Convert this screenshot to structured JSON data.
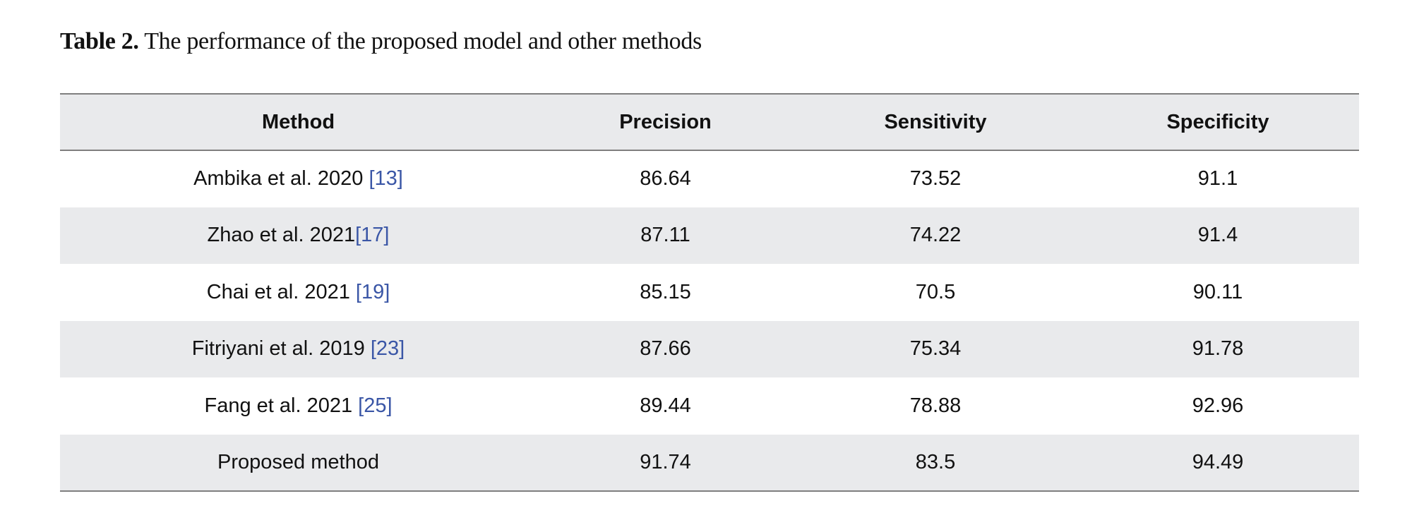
{
  "caption": {
    "label": "Table 2.",
    "text": " The performance of the proposed model and other methods"
  },
  "table": {
    "headers": [
      "Method",
      "Precision",
      "Sensitivity",
      "Specificity"
    ],
    "rows": [
      {
        "method": "Ambika et al. 2020 ",
        "ref": "[13]",
        "precision": "86.64",
        "sensitivity": "73.52",
        "specificity": "91.1"
      },
      {
        "method": "Zhao et al. 2021",
        "ref": "[17]",
        "precision": "87.11",
        "sensitivity": "74.22",
        "specificity": "91.4"
      },
      {
        "method": "Chai et al. 2021 ",
        "ref": "[19]",
        "precision": "85.15",
        "sensitivity": "70.5",
        "specificity": "90.11"
      },
      {
        "method": "Fitriyani et al. 2019 ",
        "ref": "[23]",
        "precision": "87.66",
        "sensitivity": "75.34",
        "specificity": "91.78"
      },
      {
        "method": "Fang et al. 2021 ",
        "ref": "[25]",
        "precision": "89.44",
        "sensitivity": "78.88",
        "specificity": "92.96"
      },
      {
        "method": "Proposed method",
        "ref": "",
        "precision": "91.74",
        "sensitivity": "83.5",
        "specificity": "94.49"
      }
    ]
  },
  "colors": {
    "reference_link": "#3a56a6",
    "shaded_row": "#e9eaec",
    "rule": "#7f7f7f"
  }
}
